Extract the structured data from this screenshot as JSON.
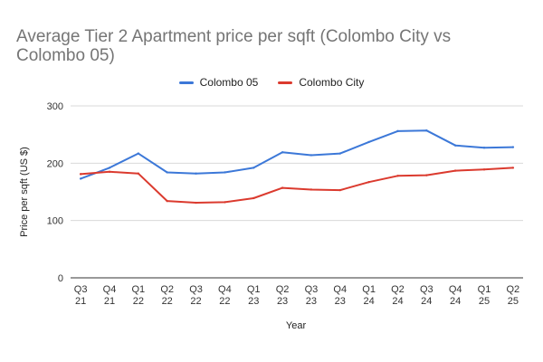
{
  "chart_data": {
    "type": "line",
    "title_line1": "Average Tier 2 Apartment price per sqft (Colombo City vs",
    "title_line2": "Colombo 05)",
    "xlabel": "Year",
    "ylabel": "Price per sqft (US $)",
    "ylim": [
      0,
      300
    ],
    "yticks": [
      0,
      100,
      200,
      300
    ],
    "grid": true,
    "legend_position": "top",
    "categories": [
      [
        "Q3",
        "21"
      ],
      [
        "Q4",
        "21"
      ],
      [
        "Q1",
        "22"
      ],
      [
        "Q2",
        "22"
      ],
      [
        "Q3",
        "22"
      ],
      [
        "Q4",
        "22"
      ],
      [
        "Q1",
        "23"
      ],
      [
        "Q2",
        "23"
      ],
      [
        "Q3",
        "23"
      ],
      [
        "Q4",
        "23"
      ],
      [
        "Q1",
        "24"
      ],
      [
        "Q2",
        "24"
      ],
      [
        "Q3",
        "24"
      ],
      [
        "Q4",
        "24"
      ],
      [
        "Q1",
        "25"
      ],
      [
        "Q2",
        "25"
      ]
    ],
    "series": [
      {
        "name": "Colombo 05",
        "color": "#3c78d8",
        "values": [
          173,
          192,
          217,
          184,
          182,
          184,
          192,
          219,
          214,
          217,
          237,
          256,
          257,
          231,
          227,
          228
        ]
      },
      {
        "name": "Colombo City",
        "color": "#db3a2e",
        "values": [
          181,
          185,
          182,
          134,
          131,
          132,
          139,
          157,
          154,
          153,
          167,
          178,
          179,
          187,
          189,
          192
        ]
      }
    ]
  }
}
